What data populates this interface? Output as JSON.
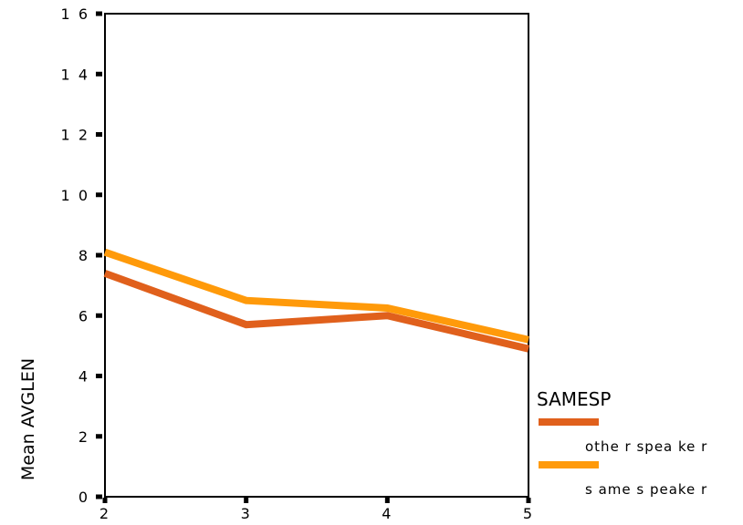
{
  "chart_data": {
    "type": "line",
    "ylabel": "Mean AVGLEN",
    "xlabel": "",
    "x": [
      2,
      3,
      4,
      5
    ],
    "xlim": [
      2,
      5
    ],
    "ylim": [
      0,
      16
    ],
    "yticks": [
      0,
      2,
      4,
      6,
      8,
      10,
      12,
      14,
      16
    ],
    "ytick_labels": [
      "0",
      "2",
      "4",
      "6",
      "8",
      "1 0",
      "1 2",
      "1 4",
      "1 6"
    ],
    "xticks": [
      2,
      3,
      4,
      5
    ],
    "xtick_labels": [
      "2",
      "3",
      "4",
      "5"
    ],
    "grid": false,
    "legend": {
      "title": "SAMESP",
      "placement": "right"
    },
    "series": [
      {
        "name": "other speaker",
        "label": "othe r spea ke r",
        "color": "#E0601C",
        "values": [
          7.4,
          5.7,
          6.0,
          4.9
        ]
      },
      {
        "name": "same speaker",
        "label": "s ame s peake r",
        "color": "#FF9A0A",
        "values": [
          8.1,
          6.5,
          6.25,
          5.2
        ]
      }
    ]
  }
}
